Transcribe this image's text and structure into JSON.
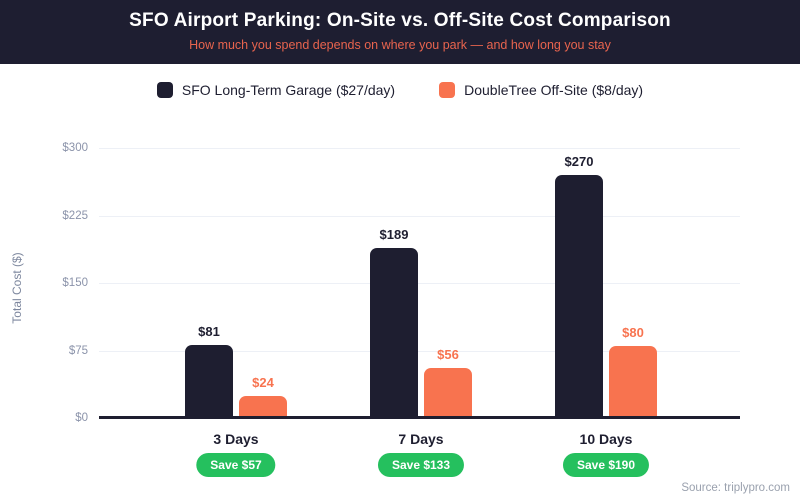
{
  "header": {
    "title": "SFO Airport Parking: On-Site vs. Off-Site Cost Comparison",
    "subtitle": "How much you spend depends on where you park — and how long you stay"
  },
  "legend": {
    "items": [
      {
        "label": "SFO Long-Term Garage ($27/day)",
        "color": "#1e1e30"
      },
      {
        "label": "DoubleTree Off-Site ($8/day)",
        "color": "#f8734f"
      }
    ]
  },
  "chart_data": {
    "type": "bar",
    "title": "SFO Airport Parking: On-Site vs. Off-Site Cost Comparison",
    "subtitle": "How much you spend depends on where you park — and how long you stay",
    "categories": [
      "3 Days",
      "7 Days",
      "10 Days"
    ],
    "series": [
      {
        "name": "SFO Long-Term Garage ($27/day)",
        "color": "#1e1e30",
        "values": [
          81,
          189,
          270
        ],
        "data_labels": [
          "$81",
          "$189",
          "$270"
        ]
      },
      {
        "name": "DoubleTree Off-Site ($8/day)",
        "color": "#f8734f",
        "values": [
          24,
          56,
          80
        ],
        "data_labels": [
          "$24",
          "$56",
          "$80"
        ]
      }
    ],
    "savings_badges": [
      "Save $57",
      "Save $133",
      "Save $190"
    ],
    "xlabel": "",
    "ylabel": "Total Cost ($)",
    "ylim": [
      0,
      300
    ],
    "yticks": [
      0,
      75,
      150,
      225,
      300
    ],
    "ytick_labels": [
      "$0",
      "$75",
      "$150",
      "$225",
      "$300"
    ],
    "grid": true,
    "legend_position": "top"
  },
  "colors": {
    "header_bg": "#1e1e31",
    "title_text": "#ffffff",
    "subtitle_text": "#e8644e",
    "on_site_bar": "#1e1e30",
    "off_site_bar": "#f8734f",
    "badge_green": "#25c05e",
    "gridline": "#edf0f6",
    "tick_text": "#8b93aa"
  },
  "footer": {
    "source": "Source: triplypro.com"
  }
}
